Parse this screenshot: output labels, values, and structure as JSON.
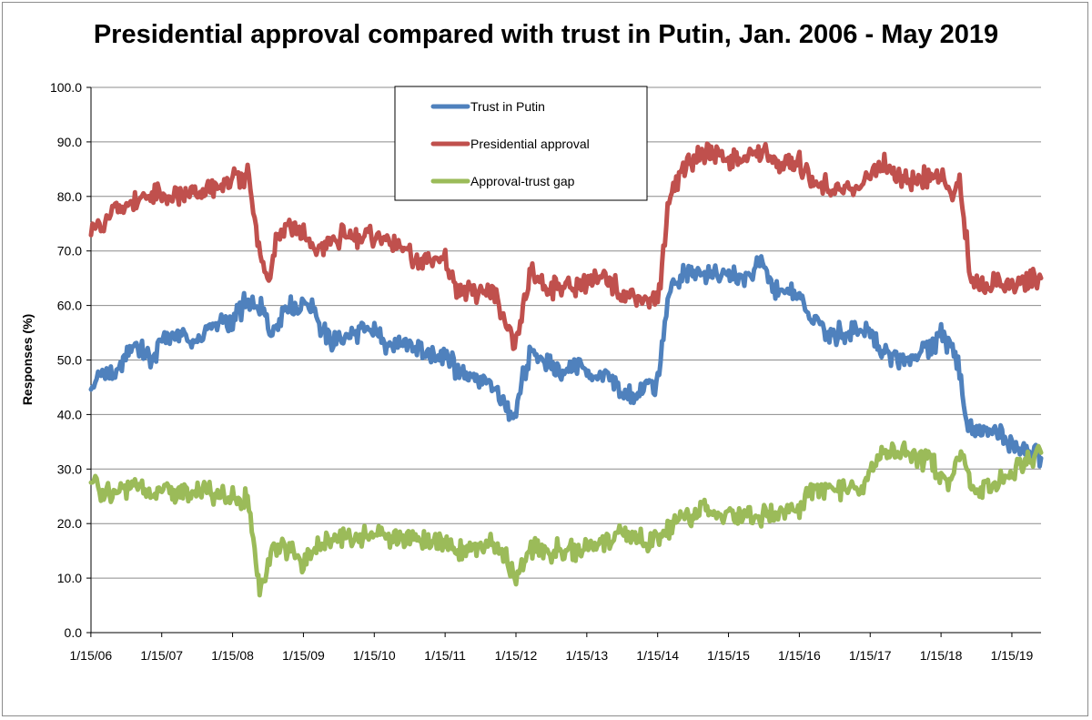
{
  "chart_data": {
    "type": "line",
    "title": "Presidential approval compared with trust in Putin, Jan. 2006 - May 2019",
    "xlabel": "",
    "ylabel": "Responses (%)",
    "ylim": [
      0,
      100
    ],
    "yticks": [
      "0.0",
      "10.0",
      "20.0",
      "30.0",
      "40.0",
      "50.0",
      "60.0",
      "70.0",
      "80.0",
      "90.0",
      "100.0"
    ],
    "xticks": [
      "1/15/06",
      "1/15/07",
      "1/15/08",
      "1/15/09",
      "1/15/10",
      "1/15/11",
      "1/15/12",
      "1/15/13",
      "1/15/14",
      "1/15/15",
      "1/15/16",
      "1/15/17",
      "1/15/18",
      "1/15/19"
    ],
    "x_range_years": [
      2006.04,
      2019.45
    ],
    "grid": "horizontal",
    "legend_position": "top-center",
    "series": [
      {
        "name": "Trust in Putin",
        "color": "#4f81bd",
        "points": [
          [
            2006.04,
            45
          ],
          [
            2006.2,
            48
          ],
          [
            2006.4,
            47
          ],
          [
            2006.55,
            52
          ],
          [
            2006.7,
            53
          ],
          [
            2006.9,
            50
          ],
          [
            2007.04,
            54
          ],
          [
            2007.3,
            55
          ],
          [
            2007.5,
            53
          ],
          [
            2007.7,
            56
          ],
          [
            2007.9,
            57
          ],
          [
            2008.04,
            57
          ],
          [
            2008.2,
            60
          ],
          [
            2008.4,
            60
          ],
          [
            2008.6,
            55
          ],
          [
            2008.8,
            60
          ],
          [
            2009.04,
            60
          ],
          [
            2009.2,
            60
          ],
          [
            2009.3,
            55
          ],
          [
            2009.5,
            53
          ],
          [
            2009.7,
            55
          ],
          [
            2009.9,
            55
          ],
          [
            2010.04,
            55
          ],
          [
            2010.2,
            53
          ],
          [
            2010.5,
            53
          ],
          [
            2010.7,
            52
          ],
          [
            2010.9,
            50
          ],
          [
            2011.04,
            52
          ],
          [
            2011.2,
            48
          ],
          [
            2011.5,
            47
          ],
          [
            2011.7,
            45
          ],
          [
            2011.9,
            42
          ],
          [
            2012.0,
            38
          ],
          [
            2012.1,
            45
          ],
          [
            2012.25,
            52
          ],
          [
            2012.5,
            49
          ],
          [
            2012.7,
            48
          ],
          [
            2012.9,
            49
          ],
          [
            2013.04,
            48
          ],
          [
            2013.3,
            47
          ],
          [
            2013.5,
            45
          ],
          [
            2013.7,
            43
          ],
          [
            2013.9,
            45
          ],
          [
            2014.04,
            46
          ],
          [
            2014.1,
            52
          ],
          [
            2014.2,
            62
          ],
          [
            2014.4,
            66
          ],
          [
            2014.7,
            65
          ],
          [
            2015.04,
            66
          ],
          [
            2015.3,
            65
          ],
          [
            2015.5,
            68
          ],
          [
            2015.7,
            63
          ],
          [
            2016.04,
            62
          ],
          [
            2016.2,
            57
          ],
          [
            2016.5,
            55
          ],
          [
            2016.7,
            55
          ],
          [
            2016.9,
            56
          ],
          [
            2017.04,
            55
          ],
          [
            2017.2,
            51
          ],
          [
            2017.5,
            50
          ],
          [
            2017.7,
            51
          ],
          [
            2017.9,
            52
          ],
          [
            2018.04,
            55
          ],
          [
            2018.2,
            52
          ],
          [
            2018.3,
            48
          ],
          [
            2018.4,
            38
          ],
          [
            2018.6,
            37
          ],
          [
            2018.8,
            37
          ],
          [
            2019.04,
            34
          ],
          [
            2019.3,
            33
          ],
          [
            2019.45,
            32
          ]
        ]
      },
      {
        "name": "Presidential approval",
        "color": "#c0504d",
        "points": [
          [
            2006.04,
            75
          ],
          [
            2006.2,
            74
          ],
          [
            2006.4,
            78
          ],
          [
            2006.6,
            79
          ],
          [
            2006.8,
            80
          ],
          [
            2007.04,
            80
          ],
          [
            2007.3,
            80
          ],
          [
            2007.6,
            81
          ],
          [
            2007.9,
            82
          ],
          [
            2008.04,
            83
          ],
          [
            2008.2,
            83
          ],
          [
            2008.25,
            86
          ],
          [
            2008.35,
            75
          ],
          [
            2008.45,
            67
          ],
          [
            2008.55,
            65
          ],
          [
            2008.65,
            72
          ],
          [
            2008.8,
            75
          ],
          [
            2009.04,
            73
          ],
          [
            2009.2,
            70
          ],
          [
            2009.4,
            71
          ],
          [
            2009.6,
            73
          ],
          [
            2009.8,
            72
          ],
          [
            2010.04,
            73
          ],
          [
            2010.2,
            72
          ],
          [
            2010.4,
            71
          ],
          [
            2010.6,
            68
          ],
          [
            2010.8,
            68
          ],
          [
            2011.04,
            69
          ],
          [
            2011.2,
            63
          ],
          [
            2011.5,
            62
          ],
          [
            2011.7,
            63
          ],
          [
            2011.9,
            56
          ],
          [
            2012.0,
            52
          ],
          [
            2012.1,
            57
          ],
          [
            2012.25,
            66
          ],
          [
            2012.5,
            63
          ],
          [
            2012.7,
            64
          ],
          [
            2012.9,
            63
          ],
          [
            2013.04,
            64
          ],
          [
            2013.3,
            65
          ],
          [
            2013.5,
            63
          ],
          [
            2013.7,
            62
          ],
          [
            2013.9,
            61
          ],
          [
            2014.04,
            62
          ],
          [
            2014.1,
            67
          ],
          [
            2014.2,
            80
          ],
          [
            2014.4,
            85
          ],
          [
            2014.7,
            88
          ],
          [
            2015.04,
            87
          ],
          [
            2015.3,
            87
          ],
          [
            2015.5,
            88
          ],
          [
            2015.7,
            86
          ],
          [
            2016.04,
            86
          ],
          [
            2016.2,
            83
          ],
          [
            2016.5,
            82
          ],
          [
            2016.7,
            81
          ],
          [
            2016.9,
            82
          ],
          [
            2017.04,
            84
          ],
          [
            2017.2,
            86
          ],
          [
            2017.5,
            83
          ],
          [
            2017.7,
            83
          ],
          [
            2017.9,
            84
          ],
          [
            2018.04,
            83
          ],
          [
            2018.2,
            80
          ],
          [
            2018.3,
            82
          ],
          [
            2018.4,
            72
          ],
          [
            2018.45,
            64
          ],
          [
            2018.6,
            64
          ],
          [
            2018.8,
            64
          ],
          [
            2019.04,
            63
          ],
          [
            2019.3,
            65
          ],
          [
            2019.45,
            65
          ]
        ]
      },
      {
        "name": "Approval-trust gap",
        "color": "#9bbb59",
        "points": [
          [
            2006.04,
            28
          ],
          [
            2006.2,
            26
          ],
          [
            2006.4,
            26
          ],
          [
            2006.6,
            27
          ],
          [
            2006.8,
            26
          ],
          [
            2007.04,
            26
          ],
          [
            2007.3,
            25
          ],
          [
            2007.6,
            26
          ],
          [
            2007.9,
            25
          ],
          [
            2008.04,
            25
          ],
          [
            2008.2,
            24
          ],
          [
            2008.25,
            25
          ],
          [
            2008.35,
            15
          ],
          [
            2008.42,
            7
          ],
          [
            2008.5,
            10
          ],
          [
            2008.6,
            15
          ],
          [
            2008.8,
            15
          ],
          [
            2009.04,
            13
          ],
          [
            2009.2,
            15
          ],
          [
            2009.4,
            17
          ],
          [
            2009.6,
            18
          ],
          [
            2009.8,
            17
          ],
          [
            2010.04,
            18
          ],
          [
            2010.2,
            18
          ],
          [
            2010.4,
            17
          ],
          [
            2010.6,
            17
          ],
          [
            2010.8,
            17
          ],
          [
            2011.04,
            17
          ],
          [
            2011.2,
            15
          ],
          [
            2011.5,
            16
          ],
          [
            2011.7,
            17
          ],
          [
            2011.9,
            14
          ],
          [
            2012.0,
            10
          ],
          [
            2012.1,
            12
          ],
          [
            2012.25,
            15
          ],
          [
            2012.5,
            15
          ],
          [
            2012.7,
            15
          ],
          [
            2012.9,
            15
          ],
          [
            2013.04,
            16
          ],
          [
            2013.3,
            17
          ],
          [
            2013.5,
            18
          ],
          [
            2013.7,
            18
          ],
          [
            2013.9,
            16
          ],
          [
            2014.04,
            17
          ],
          [
            2014.2,
            19
          ],
          [
            2014.4,
            21
          ],
          [
            2014.7,
            23
          ],
          [
            2015.04,
            21
          ],
          [
            2015.3,
            22
          ],
          [
            2015.5,
            21
          ],
          [
            2015.7,
            22
          ],
          [
            2016.04,
            23
          ],
          [
            2016.2,
            26
          ],
          [
            2016.5,
            27
          ],
          [
            2016.7,
            26
          ],
          [
            2016.9,
            26
          ],
          [
            2017.04,
            30
          ],
          [
            2017.2,
            33
          ],
          [
            2017.5,
            33
          ],
          [
            2017.7,
            32
          ],
          [
            2017.9,
            32
          ],
          [
            2018.04,
            28
          ],
          [
            2018.2,
            28
          ],
          [
            2018.3,
            33
          ],
          [
            2018.4,
            30
          ],
          [
            2018.45,
            26
          ],
          [
            2018.6,
            27
          ],
          [
            2018.8,
            27
          ],
          [
            2019.04,
            29
          ],
          [
            2019.3,
            32
          ],
          [
            2019.45,
            33
          ]
        ]
      }
    ]
  }
}
